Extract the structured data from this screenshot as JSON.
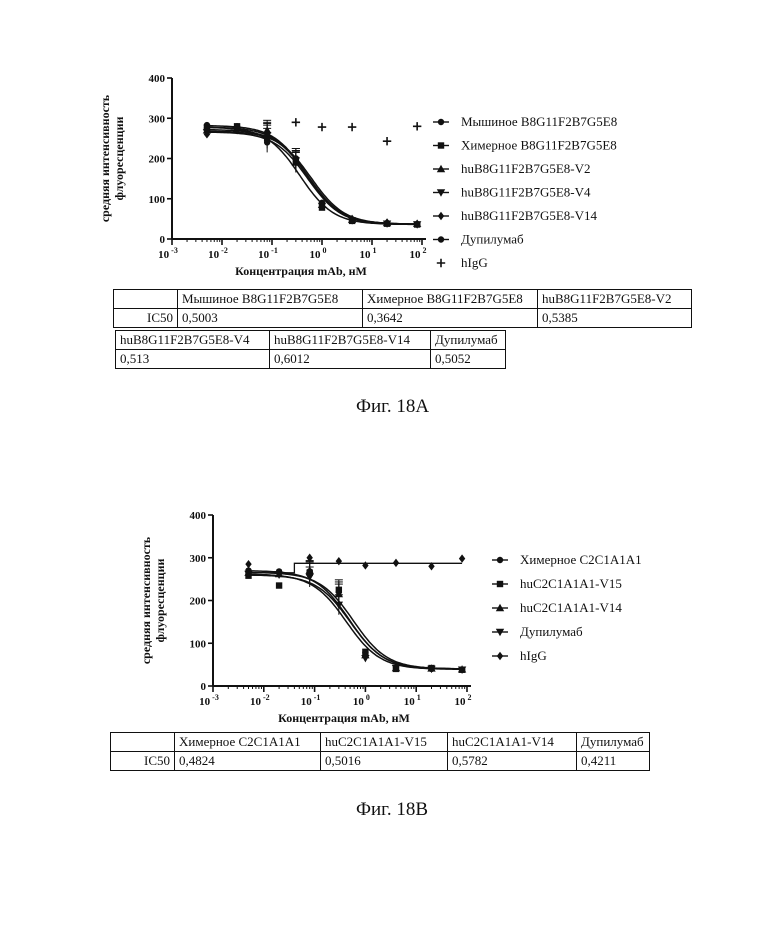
{
  "figures": [
    {
      "caption": "Фиг. 18A",
      "chart_data": {
        "type": "scatter",
        "xlabel": "Концентрация mAb, нМ",
        "ylabel_line1": "средняя интенсивность",
        "ylabel_line2": "флуоресценции",
        "x_scale": "log",
        "xlim": [
          0.001,
          100
        ],
        "ylim": [
          0,
          400
        ],
        "x_ticks": [
          {
            "base": "10",
            "exp": "-3"
          },
          {
            "base": "10",
            "exp": "-2"
          },
          {
            "base": "10",
            "exp": "-1"
          },
          {
            "base": "10",
            "exp": "0"
          },
          {
            "base": "10",
            "exp": "1"
          },
          {
            "base": "10",
            "exp": "2"
          }
        ],
        "y_ticks": [
          "0",
          "100",
          "200",
          "300",
          "400"
        ],
        "legend_position": "right",
        "series": [
          {
            "name": "Мышиное B8G11F2B7G5E8",
            "marker": "circle",
            "x": [
              0.005,
              0.02,
              0.08,
              0.3,
              1,
              4,
              20,
              80
            ],
            "y": [
              283,
              280,
              262,
              200,
              90,
              48,
              40,
              37
            ],
            "fit": {
              "top": 282,
              "bottom": 36,
              "ec50": 0.5003
            }
          },
          {
            "name": "Химерное B8G11F2B7G5E8",
            "marker": "square",
            "x": [
              0.005,
              0.02,
              0.08,
              0.3,
              1,
              4,
              20,
              80
            ],
            "y": [
              277,
              280,
              250,
              195,
              78,
              45,
              38,
              36
            ],
            "fit": {
              "top": 278,
              "bottom": 36,
              "ec50": 0.3642
            }
          },
          {
            "name": "huB8G11F2B7G5E8-V2",
            "marker": "triangle-up",
            "x": [
              0.005,
              0.02,
              0.08,
              0.3,
              1,
              4,
              20,
              80
            ],
            "y": [
              270,
              275,
              270,
              190,
              85,
              48,
              40,
              38
            ],
            "fit": {
              "top": 272,
              "bottom": 37,
              "ec50": 0.5385
            }
          },
          {
            "name": "huB8G11F2B7G5E8-V4",
            "marker": "triangle-down",
            "x": [
              0.005,
              0.02,
              0.08,
              0.3,
              1,
              4,
              20,
              80
            ],
            "y": [
              265,
              270,
              258,
              195,
              82,
              46,
              38,
              36
            ],
            "fit": {
              "top": 266,
              "bottom": 36,
              "ec50": 0.513
            }
          },
          {
            "name": "huB8G11F2B7G5E8-V14",
            "marker": "diamond",
            "x": [
              0.005,
              0.02,
              0.08,
              0.3,
              1,
              4,
              20,
              80
            ],
            "y": [
              260,
              272,
              265,
              192,
              88,
              50,
              41,
              38
            ],
            "fit": {
              "top": 268,
              "bottom": 37,
              "ec50": 0.6012
            }
          },
          {
            "name": "Дупилумаб",
            "marker": "circle",
            "x": [
              0.005,
              0.02,
              0.08,
              0.3,
              1,
              4,
              20,
              80
            ],
            "y": [
              275,
              278,
              240,
              200,
              80,
              45,
              39,
              36
            ],
            "fit": {
              "top": 278,
              "bottom": 36,
              "ec50": 0.5052
            }
          },
          {
            "name": "hIgG",
            "marker": "plus",
            "x": [
              0.3,
              1,
              4,
              20,
              80
            ],
            "y": [
              290,
              278,
              278,
              243,
              280
            ]
          }
        ]
      },
      "table_rows": [
        [
          "",
          "Мышиное B8G11F2B7G5E8",
          "Химерное B8G11F2B7G5E8",
          "huB8G11F2B7G5E8-V2"
        ],
        [
          "IC50",
          "0,5003",
          "0,3642",
          "0,5385"
        ]
      ],
      "table2_rows": [
        [
          "huB8G11F2B7G5E8-V4",
          "huB8G11F2B7G5E8-V14",
          "Дупилумаб"
        ],
        [
          "0,513",
          "0,6012",
          "0,5052"
        ]
      ]
    },
    {
      "caption": "Фиг. 18B",
      "chart_data": {
        "type": "scatter",
        "xlabel": "Концентрация mAb, нМ",
        "ylabel_line1": "средняя интенсивность",
        "ylabel_line2": "флуоресценции",
        "x_scale": "log",
        "xlim": [
          0.001,
          100
        ],
        "ylim": [
          0,
          400
        ],
        "x_ticks": [
          {
            "base": "10",
            "exp": "-3"
          },
          {
            "base": "10",
            "exp": "-2"
          },
          {
            "base": "10",
            "exp": "-1"
          },
          {
            "base": "10",
            "exp": "0"
          },
          {
            "base": "10",
            "exp": "1"
          },
          {
            "base": "10",
            "exp": "2"
          }
        ],
        "y_ticks": [
          "0",
          "100",
          "200",
          "300",
          "400"
        ],
        "legend_position": "right",
        "series": [
          {
            "name": "Химерное C2C1A1A1",
            "marker": "circle",
            "x": [
              0.005,
              0.02,
              0.08,
              0.3,
              1,
              4,
              20,
              80
            ],
            "y": [
              270,
              268,
              268,
              220,
              78,
              42,
              40,
              38
            ],
            "fit": {
              "top": 270,
              "bottom": 40,
              "ec50": 0.4824
            }
          },
          {
            "name": "huC2C1A1A1-V15",
            "marker": "square",
            "x": [
              0.005,
              0.02,
              0.08,
              0.3,
              1,
              4,
              20,
              80
            ],
            "y": [
              258,
              235,
              265,
              225,
              80,
              40,
              42,
              38
            ],
            "fit": {
              "top": 260,
              "bottom": 40,
              "ec50": 0.5016
            }
          },
          {
            "name": "huC2C1A1A1-V14",
            "marker": "triangle-up",
            "x": [
              0.005,
              0.02,
              0.08,
              0.3,
              1,
              4,
              20,
              80
            ],
            "y": [
              265,
              262,
              270,
              215,
              72,
              42,
              41,
              39
            ],
            "fit": {
              "top": 266,
              "bottom": 40,
              "ec50": 0.5782
            }
          },
          {
            "name": "Дупилумаб",
            "marker": "triangle-down",
            "x": [
              0.005,
              0.02,
              0.08,
              0.3,
              1,
              4,
              20,
              80
            ],
            "y": [
              262,
              260,
              255,
              190,
              65,
              42,
              40,
              38
            ],
            "fit": {
              "top": 262,
              "bottom": 39,
              "ec50": 0.4211
            }
          },
          {
            "name": "hIgG",
            "marker": "diamond",
            "x": [
              0.005,
              0.08,
              0.3,
              1,
              4,
              20,
              80
            ],
            "y": [
              285,
              300,
              292,
              282,
              288,
              280,
              298
            ],
            "flat": 287
          }
        ]
      },
      "table_rows": [
        [
          "",
          "Химерное C2C1A1A1",
          "huC2C1A1A1-V15",
          "huC2C1A1A1-V14",
          "Дупилумаб"
        ],
        [
          "IC50",
          "0,4824",
          "0,5016",
          "0,5782",
          "0,4211"
        ]
      ]
    }
  ]
}
